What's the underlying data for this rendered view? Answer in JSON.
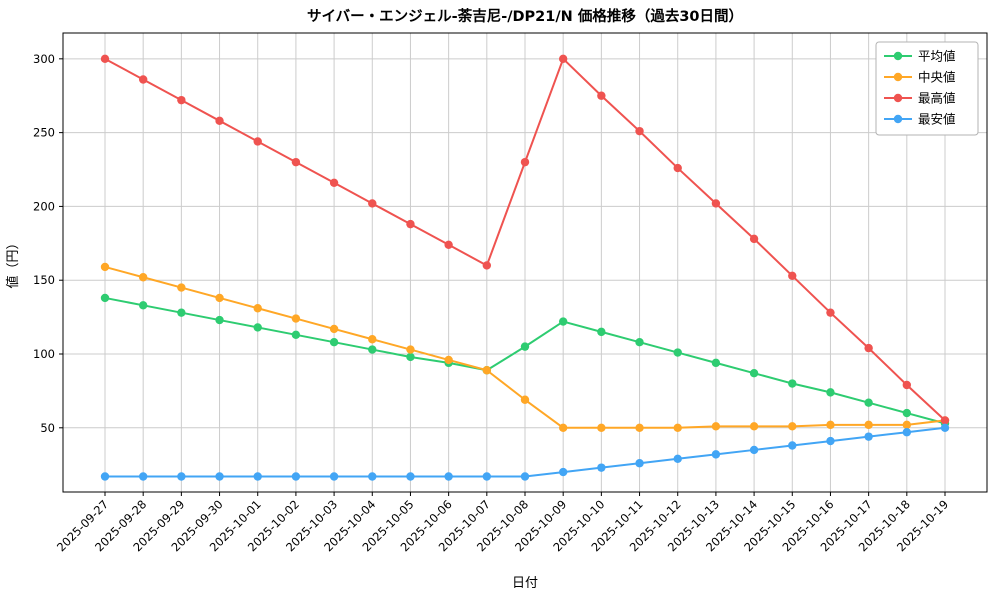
{
  "figure": {
    "background": "#ffffff",
    "grid_color": "#cccccc",
    "axis_color": "#000000",
    "legend_border_color": "#b3b3b3"
  },
  "chart_data": {
    "type": "line",
    "title": "サイバー・エンジェル-荼吉尼-/DP21/N 価格推移（過去30日間）",
    "xlabel": "日付",
    "ylabel": "値（円）",
    "x": [
      "2025-09-27",
      "2025-09-28",
      "2025-09-29",
      "2025-09-30",
      "2025-10-01",
      "2025-10-02",
      "2025-10-03",
      "2025-10-04",
      "2025-10-05",
      "2025-10-06",
      "2025-10-07",
      "2025-10-08",
      "2025-10-09",
      "2025-10-10",
      "2025-10-11",
      "2025-10-12",
      "2025-10-13",
      "2025-10-14",
      "2025-10-15",
      "2025-10-16",
      "2025-10-17",
      "2025-10-18",
      "2025-10-19"
    ],
    "series": [
      {
        "name": "平均値",
        "color": "#2ecc71",
        "values": [
          138,
          133,
          128,
          123,
          118,
          113,
          108,
          103,
          98,
          94,
          89,
          105,
          122,
          115,
          108,
          101,
          94,
          87,
          80,
          74,
          67,
          60,
          53
        ]
      },
      {
        "name": "中央値",
        "color": "#ffa726",
        "values": [
          159,
          152,
          145,
          138,
          131,
          124,
          117,
          110,
          103,
          96,
          89,
          69,
          50,
          50,
          50,
          50,
          51,
          51,
          51,
          52,
          52,
          52,
          55
        ]
      },
      {
        "name": "最高値",
        "color": "#ef5350",
        "values": [
          300,
          286,
          272,
          258,
          244,
          230,
          216,
          202,
          188,
          174,
          160,
          230,
          300,
          275,
          251,
          226,
          202,
          178,
          153,
          128,
          104,
          79,
          55
        ]
      },
      {
        "name": "最安値",
        "color": "#42a5f5",
        "values": [
          17,
          17,
          17,
          17,
          17,
          17,
          17,
          17,
          17,
          17,
          17,
          17,
          20,
          23,
          26,
          29,
          32,
          35,
          38,
          41,
          44,
          47,
          50
        ]
      }
    ],
    "yticks": [
      50,
      100,
      150,
      200,
      250,
      300
    ],
    "ylim": [
      6.5,
      317.5
    ],
    "grid": true,
    "legend_position": "upper right",
    "marker": "circle"
  }
}
